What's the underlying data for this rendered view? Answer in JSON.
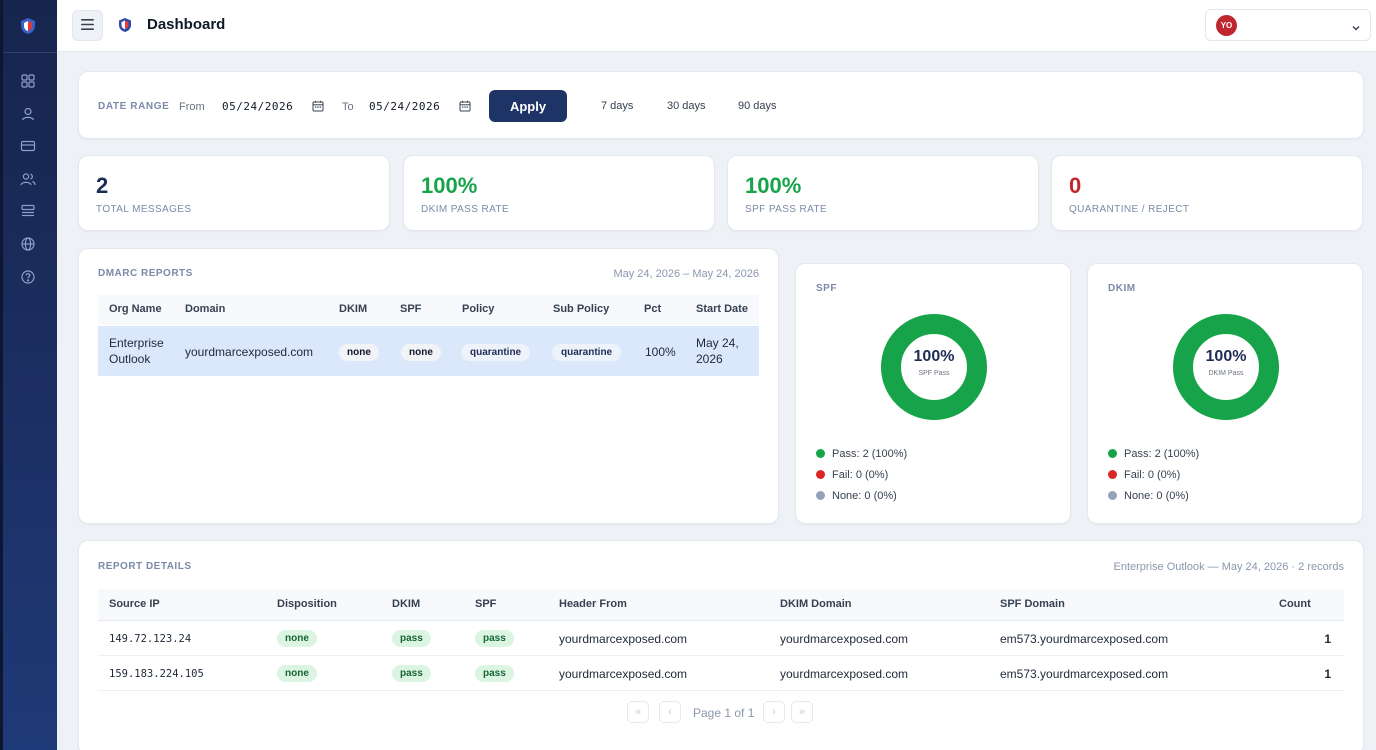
{
  "header": {
    "title": "Dashboard",
    "avatar_initials": "YO"
  },
  "sidebar": {
    "icons": [
      "logo-shield-icon",
      "grid-icon",
      "user-icon",
      "card-icon",
      "users-icon",
      "reports-icon",
      "globe-icon",
      "help-icon"
    ]
  },
  "date_range": {
    "label": "DATE RANGE",
    "from_label": "From",
    "from_value": "05/24/2026",
    "to_label": "To",
    "to_value": "05/24/2026",
    "apply_label": "Apply",
    "quick_ranges": [
      "7 days",
      "30 days",
      "90 days"
    ]
  },
  "stats": [
    {
      "value": "2",
      "label": "TOTAL MESSAGES",
      "color": "#1e2d55"
    },
    {
      "value": "100%",
      "label": "DKIM PASS RATE",
      "color": "#16a34a"
    },
    {
      "value": "100%",
      "label": "SPF PASS RATE",
      "color": "#16a34a"
    },
    {
      "value": "0",
      "label": "QUARANTINE / REJECT",
      "color": "#c0262d"
    }
  ],
  "dmarc_reports": {
    "title": "DMARC REPORTS",
    "date_range": "May 24, 2026 – May 24, 2026",
    "columns": [
      "Org Name",
      "Domain",
      "DKIM",
      "SPF",
      "Policy",
      "Sub Policy",
      "Pct",
      "Start Date"
    ],
    "rows": [
      {
        "org_name_1": "Enterprise",
        "org_name_2": "Outlook",
        "domain": "yourdmarcexposed.com",
        "dkim": "none",
        "spf": "none",
        "policy": "quarantine",
        "sub_policy": "quarantine",
        "pct": "100%",
        "start_date_1": "May 24,",
        "start_date_2": "2026"
      }
    ]
  },
  "spf_chart": {
    "title": "SPF",
    "pass_fraction": 1.0,
    "center_value": "100%",
    "center_label": "SPF Pass",
    "legend": [
      "Pass: 2 (100%)",
      "Fail: 0 (0%)",
      "None: 0 (0%)"
    ]
  },
  "dkim_chart": {
    "title": "DKIM",
    "pass_fraction": 1.0,
    "center_value": "100%",
    "center_label": "DKIM Pass",
    "legend": [
      "Pass: 2 (100%)",
      "Fail: 0 (0%)",
      "None: 0 (0%)"
    ]
  },
  "colors": {
    "pass": "#16a34a",
    "fail": "#dc2626",
    "none": "#94a3b8",
    "primary": "#1e3466"
  },
  "report_details": {
    "title": "REPORT DETAILS",
    "meta": "Enterprise Outlook — May 24, 2026 · 2 records",
    "columns": [
      "Source IP",
      "Disposition",
      "DKIM",
      "SPF",
      "Header From",
      "DKIM Domain",
      "SPF Domain",
      "Count"
    ],
    "rows": [
      {
        "source_ip": "149.72.123.24",
        "disposition": "none",
        "dkim": "pass",
        "spf": "pass",
        "header_from": "yourdmarcexposed.com",
        "dkim_domain": "yourdmarcexposed.com",
        "spf_domain": "em573.yourdmarcexposed.com",
        "count": "1"
      },
      {
        "source_ip": "159.183.224.105",
        "disposition": "none",
        "dkim": "pass",
        "spf": "pass",
        "header_from": "yourdmarcexposed.com",
        "dkim_domain": "yourdmarcexposed.com",
        "spf_domain": "em573.yourdmarcexposed.com",
        "count": "1"
      }
    ],
    "pagination": {
      "label": "Page 1 of 1",
      "first": "«",
      "prev": "‹",
      "next": "›",
      "last": "»"
    }
  }
}
